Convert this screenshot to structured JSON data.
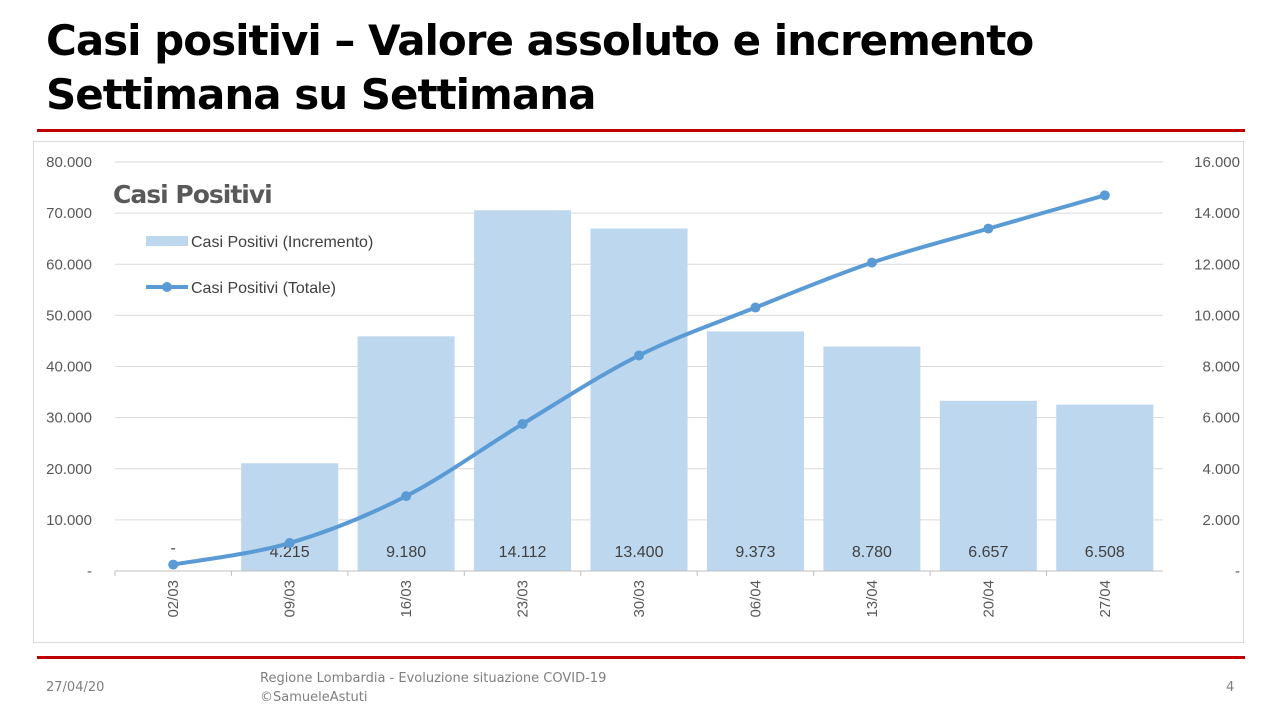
{
  "slide": {
    "title_line1": "Casi positivi – Valore assoluto e incremento",
    "title_line2": "Settimana su Settimana",
    "footer_date": "27/04/20",
    "footer_line1": "Regione Lombardia - Evoluzione situazione COVID-19",
    "footer_line2": "©SamueleAstuti",
    "page_number": "4"
  },
  "colors": {
    "bar": "#bdd7ee",
    "line": "#5b9bd5",
    "accent": "#c00000"
  },
  "chart_data": {
    "type": "bar+line",
    "title": "Casi Positivi",
    "categories": [
      "02/03",
      "09/03",
      "16/03",
      "23/03",
      "30/03",
      "06/04",
      "13/04",
      "20/04",
      "27/04"
    ],
    "series": [
      {
        "name": "Casi Positivi (Incremento)",
        "type": "bar",
        "axis": "right",
        "values": [
          0,
          4215,
          9180,
          14112,
          13400,
          9373,
          8780,
          6657,
          6508
        ],
        "labels": [
          "-",
          "4.215",
          "9.180",
          "14.112",
          "13.400",
          "9.373",
          "8.780",
          "6.657",
          "6.508"
        ]
      },
      {
        "name": "Casi Positivi (Totale)",
        "type": "line",
        "axis": "left",
        "values": [
          1254,
          5469,
          14649,
          28761,
          42161,
          51534,
          60314,
          66971,
          73479
        ]
      }
    ],
    "left_axis": {
      "range": [
        0,
        80000
      ],
      "ticks": [
        "-",
        "10.000",
        "20.000",
        "30.000",
        "40.000",
        "50.000",
        "60.000",
        "70.000",
        "80.000"
      ]
    },
    "right_axis": {
      "range": [
        0,
        16000
      ],
      "ticks": [
        "-",
        "2.000",
        "4.000",
        "6.000",
        "8.000",
        "10.000",
        "12.000",
        "14.000",
        "16.000"
      ]
    },
    "grid": true,
    "legend": "top-left"
  }
}
